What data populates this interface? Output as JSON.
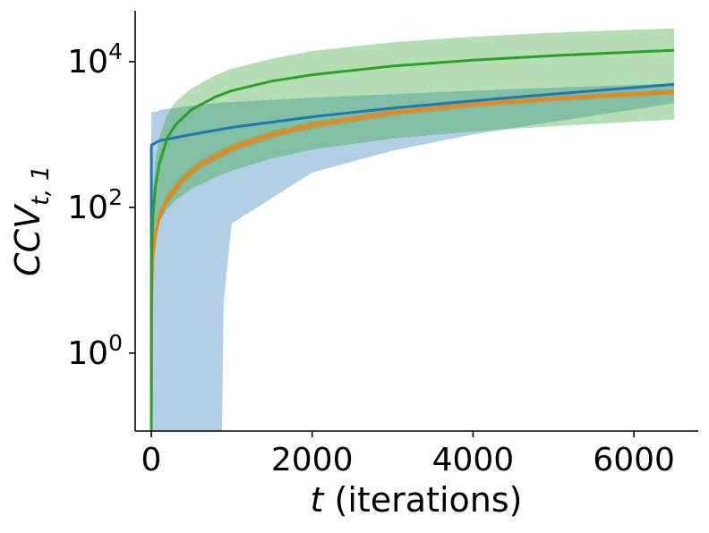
{
  "chart_data": {
    "type": "line",
    "xlabel": {
      "italic": "t",
      "rest": " (iterations)"
    },
    "ylabel": {
      "main": "CCV",
      "subscript": "t, 1"
    },
    "xlim": [
      -200,
      6800
    ],
    "y_scale": "log",
    "ylim": [
      0.085,
      50000
    ],
    "xticks": [
      0,
      2000,
      4000,
      6000
    ],
    "xtick_labels": [
      "0",
      "2000",
      "4000",
      "6000"
    ],
    "yticks": [
      1,
      100,
      10000
    ],
    "ytick_labels": [
      {
        "base": "10",
        "exp": "0"
      },
      {
        "base": "10",
        "exp": "2"
      },
      {
        "base": "10",
        "exp": "4"
      }
    ],
    "grid": false,
    "legend": "none",
    "series": [
      {
        "color": "#1f77b4",
        "band_opacity": 0.35,
        "x": [
          0,
          1,
          5,
          100,
          500,
          1000,
          2000,
          3000,
          4000,
          5000,
          6000,
          6500
        ],
        "y": [
          0.085,
          700,
          720,
          820,
          1000,
          1250,
          1750,
          2300,
          2900,
          3600,
          4400,
          4900
        ],
        "band_x": [
          0,
          50,
          90,
          100,
          200,
          400,
          600,
          800,
          880,
          900,
          1000,
          2000,
          3000,
          4000,
          5000,
          6000,
          6500
        ],
        "band_lower": [
          0.085,
          0.085,
          0.085,
          0.085,
          0.085,
          0.085,
          0.085,
          0.085,
          0.085,
          5,
          60,
          300,
          600,
          1000,
          1500,
          2200,
          2700
        ],
        "band_upper": [
          2000,
          2050,
          2100,
          2150,
          2250,
          2400,
          2550,
          2700,
          2750,
          2750,
          2800,
          3200,
          3600,
          4000,
          4400,
          4800,
          5000
        ]
      },
      {
        "color": "#ff7f0e",
        "band_opacity": 0.4,
        "x": [
          0,
          5,
          20,
          50,
          100,
          200,
          400,
          600,
          1000,
          1500,
          2000,
          3000,
          4000,
          5000,
          6000,
          6500
        ],
        "y": [
          0.085,
          5,
          20,
          40,
          75,
          130,
          250,
          380,
          650,
          1000,
          1350,
          2000,
          2600,
          3100,
          3600,
          3850
        ],
        "band_x": [
          0,
          5,
          20,
          50,
          100,
          200,
          400,
          600,
          1000,
          1500,
          2000,
          3000,
          4000,
          5000,
          6000,
          6500
        ],
        "band_lower": [
          0.085,
          4,
          16,
          33,
          62,
          110,
          215,
          330,
          570,
          880,
          1200,
          1800,
          2350,
          2850,
          3300,
          3550
        ],
        "band_upper": [
          0.085,
          6,
          25,
          48,
          90,
          155,
          290,
          440,
          740,
          1130,
          1520,
          2220,
          2850,
          3400,
          3920,
          4180
        ]
      },
      {
        "color": "#2ca02c",
        "band_opacity": 0.35,
        "x": [
          0,
          5,
          20,
          50,
          100,
          200,
          300,
          500,
          800,
          1000,
          1500,
          2000,
          3000,
          4000,
          5000,
          6000,
          6500
        ],
        "y": [
          0.085,
          20,
          75,
          190,
          400,
          900,
          1350,
          2200,
          3300,
          4000,
          5400,
          6600,
          8700,
          10500,
          12100,
          13600,
          14300
        ],
        "band_x": [
          0,
          5,
          20,
          50,
          100,
          200,
          300,
          500,
          800,
          1000,
          1500,
          2000,
          3000,
          4000,
          5000,
          6000,
          6500
        ],
        "band_lower": [
          0.085,
          8,
          25,
          45,
          65,
          95,
          125,
          180,
          260,
          320,
          470,
          620,
          880,
          1100,
          1300,
          1500,
          1600
        ],
        "band_upper": [
          0.085,
          40,
          170,
          420,
          900,
          1900,
          2800,
          4300,
          6500,
          8000,
          11000,
          14000,
          18500,
          22000,
          25000,
          27500,
          28500
        ]
      }
    ]
  }
}
